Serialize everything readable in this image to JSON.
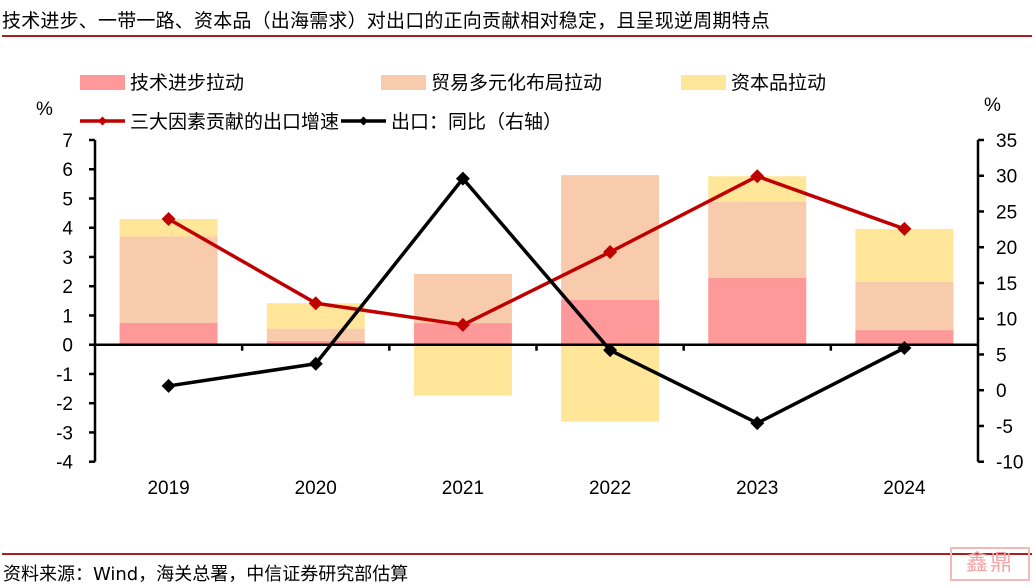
{
  "title": "技术进步、一带一路、资本品（出海需求）对出口的正向贡献相对稳定，且呈现逆周期特点",
  "source": "资料来源：Wind，海关总署，中信证券研究部估算",
  "watermark": "鑫鼎",
  "colors": {
    "rule": "#b01d1d",
    "tech": "#ff9999",
    "trade": "#f8cbad",
    "capital": "#ffe699",
    "contrib_line": "#c00000",
    "export_line": "#000000"
  },
  "chart_data": {
    "type": "bar",
    "stacked": true,
    "title": "技术进步、一带一路、资本品（出海需求）对出口的正向贡献相对稳定，且呈现逆周期特点",
    "categories": [
      "2019",
      "2020",
      "2021",
      "2022",
      "2023",
      "2024"
    ],
    "ylabel_left": "%",
    "ylabel_right": "%",
    "ylim_left": [
      -4,
      7
    ],
    "ylim_right": [
      -10,
      35
    ],
    "yticks_left": [
      "7",
      "6",
      "5",
      "4",
      "3",
      "2",
      "1",
      "0",
      "-1",
      "-2",
      "-3",
      "-4"
    ],
    "yticks_right": [
      "35",
      "30",
      "25",
      "20",
      "15",
      "10",
      "5",
      "0",
      "-5",
      "-10"
    ],
    "legend_position": "top",
    "series": [
      {
        "name": "技术进步拉动",
        "kind": "bar",
        "axis": "left",
        "values": [
          0.75,
          0.13,
          0.74,
          1.53,
          2.29,
          0.5
        ]
      },
      {
        "name": "贸易多元化布局拉动",
        "kind": "bar",
        "axis": "left",
        "values": [
          2.95,
          0.42,
          1.68,
          4.27,
          2.6,
          1.65
        ]
      },
      {
        "name": "资本品拉动",
        "kind": "bar",
        "axis": "left",
        "values": [
          0.6,
          0.87,
          -1.74,
          -2.63,
          0.87,
          1.81
        ]
      },
      {
        "name": "三大因素贡献的出口增速",
        "kind": "line",
        "axis": "left",
        "values": [
          4.3,
          1.42,
          0.68,
          3.17,
          5.76,
          3.96
        ]
      },
      {
        "name": "出口：同比（右轴）",
        "kind": "line",
        "axis": "right",
        "values": [
          0.6,
          3.7,
          29.6,
          5.6,
          -4.6,
          5.9
        ]
      }
    ]
  }
}
